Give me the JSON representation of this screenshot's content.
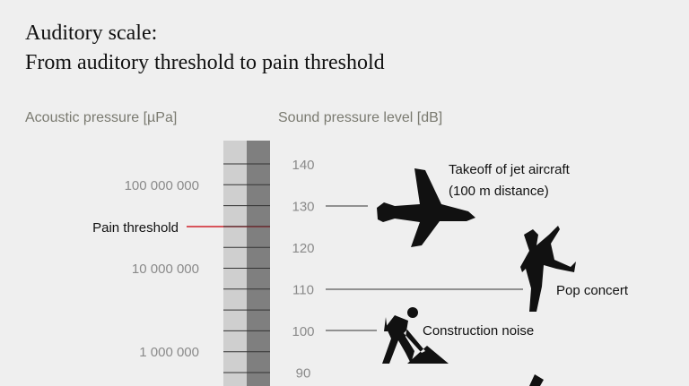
{
  "header": {
    "title_lines": [
      "Auditory scale:",
      "From auditory threshold to pain threshold"
    ]
  },
  "left_scale": {
    "label": "Acoustic pressure [µPa]",
    "ticks": [
      "100 000 000",
      "10 000 000",
      "1 000 000"
    ],
    "pain_threshold": "Pain threshold"
  },
  "right_scale": {
    "label": "Sound pressure level [dB]",
    "ticks": [
      140,
      130,
      120,
      110,
      100,
      90
    ]
  },
  "annotations": [
    {
      "lines": [
        "Takeoff of jet aircraft",
        "(100 m distance)"
      ]
    },
    {
      "lines": [
        "Pop concert"
      ]
    },
    {
      "lines": [
        "Construction noise"
      ]
    }
  ]
}
